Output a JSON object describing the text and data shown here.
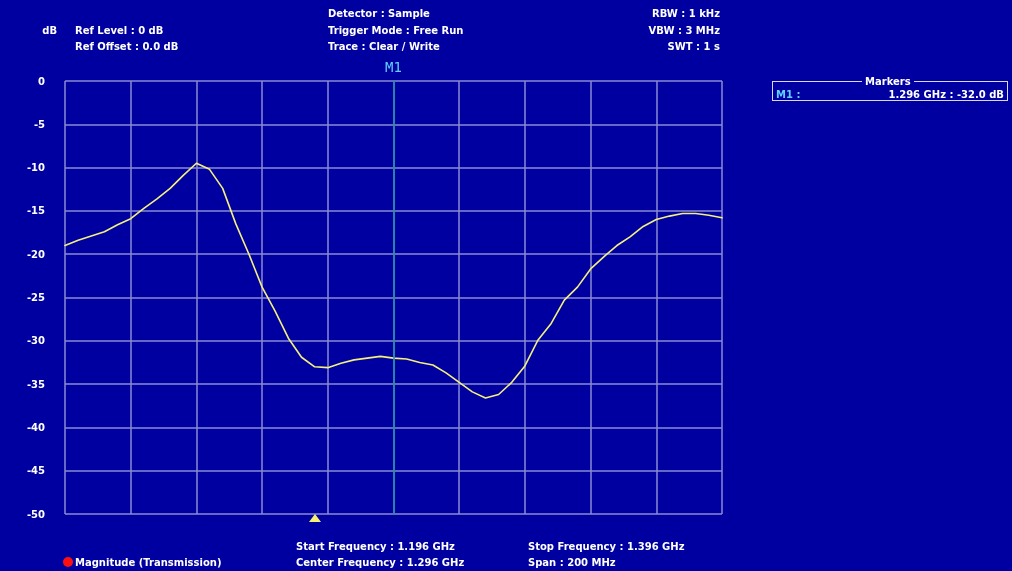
{
  "chart_data": {
    "type": "line",
    "ylabel": "dB",
    "annotations": [
      "Ref Level : 0 dB",
      "Ref Offset : 0.0 dB",
      "Detector : Sample",
      "Trigger Mode : Free Run",
      "Trace : Clear / Write",
      "RBW : 1 kHz",
      "VBW : 3 MHz",
      "SWT : 1 s",
      "M1",
      "Markers",
      "M1 :",
      "1.296 GHz : -32.0 dB",
      "Magnitude (Transmission)",
      "Start Frequency : 1.196 GHz",
      "Center Frequency : 1.296 GHz",
      "Stop Frequency : 1.396 GHz",
      "Span : 200 MHz"
    ],
    "categories": [
      null,
      null,
      null,
      null,
      null,
      null,
      null,
      null,
      null,
      null,
      null,
      null,
      null,
      null,
      null,
      null,
      null,
      null,
      null,
      null,
      null,
      null,
      null,
      null,
      null,
      null,
      null,
      null,
      null,
      null,
      null,
      null,
      null,
      null,
      null,
      null,
      null,
      null,
      null,
      null,
      null,
      null,
      null,
      null,
      null,
      null,
      null,
      null,
      null,
      null,
      null
    ],
    "series": [
      {
        "color": "#f4f07c",
        "values": [
          -19.0,
          -18.4,
          -17.9,
          -17.4,
          -16.6,
          -15.9,
          -14.7,
          -13.6,
          -12.4,
          -10.9,
          -9.5,
          -10.2,
          -12.4,
          -16.5,
          -20.0,
          -23.8,
          -26.6,
          -29.7,
          -31.9,
          -33.0,
          -33.1,
          -32.6,
          -32.2,
          -32.0,
          -31.8,
          -32.0,
          -32.1,
          -32.5,
          -32.8,
          -33.7,
          -34.8,
          -35.9,
          -36.6,
          -36.2,
          -34.8,
          -32.9,
          -29.9,
          -28.0,
          -25.3,
          -23.8,
          -21.7,
          -20.3,
          -19.0,
          -18.0,
          -16.8,
          -16.0,
          -15.6,
          -15.3,
          -15.3,
          -15.5,
          -15.8
        ]
      }
    ],
    "ylim": [
      -50,
      0
    ],
    "yticks": [
      -50,
      -45,
      -40,
      -35,
      -30,
      -25,
      -20,
      -15,
      -10,
      -5,
      0
    ],
    "grid": true,
    "tick_labels": "y",
    "marker": "none",
    "line_style": "solid"
  }
}
